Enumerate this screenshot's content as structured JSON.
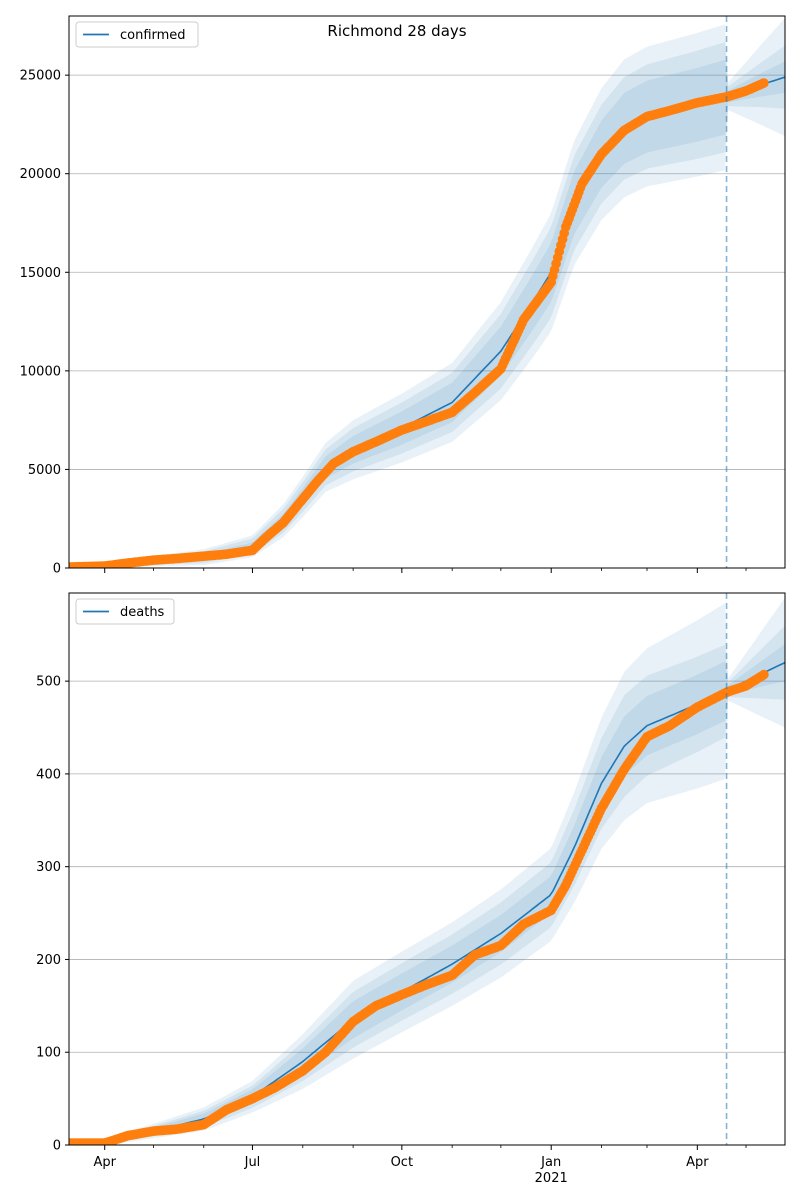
{
  "figure": {
    "title": "Richmond 28 days"
  },
  "colors": {
    "model": "#1f77b4",
    "observed": "#ff7f0e",
    "band": "#1f77b4",
    "grid": "#b0b0b0",
    "forecast_line": "#1f77b4"
  },
  "x_axis": {
    "start": "2020-03-10",
    "end": "2021-05-25",
    "major_ticks": [
      {
        "date": "2020-04-01",
        "label": "Apr"
      },
      {
        "date": "2020-07-01",
        "label": "Jul"
      },
      {
        "date": "2020-10-01",
        "label": "Oct"
      },
      {
        "date": "2021-01-01",
        "label": "Jan",
        "sublabel": "2021"
      },
      {
        "date": "2021-04-01",
        "label": "Apr"
      }
    ],
    "minor_ticks": [
      "2020-05-01",
      "2020-06-01",
      "2020-08-01",
      "2020-09-01",
      "2020-11-01",
      "2020-12-01",
      "2021-02-01",
      "2021-03-01",
      "2021-05-01"
    ]
  },
  "forecast_date": "2021-04-19",
  "chart_data": [
    {
      "type": "line",
      "legend": "confirmed",
      "legend_position": "upper left",
      "grid": "y",
      "ylim": [
        0,
        28000
      ],
      "yticks": [
        0,
        5000,
        10000,
        15000,
        20000,
        25000
      ],
      "model": [
        [
          "2020-03-10",
          0
        ],
        [
          "2020-04-01",
          60
        ],
        [
          "2020-05-01",
          350
        ],
        [
          "2020-06-01",
          550
        ],
        [
          "2020-07-01",
          1100
        ],
        [
          "2020-07-20",
          2400
        ],
        [
          "2020-08-01",
          3600
        ],
        [
          "2020-08-15",
          5100
        ],
        [
          "2020-09-01",
          6000
        ],
        [
          "2020-10-01",
          7100
        ],
        [
          "2020-11-01",
          8400
        ],
        [
          "2020-12-01",
          11000
        ],
        [
          "2020-12-20",
          13400
        ],
        [
          "2021-01-01",
          15000
        ],
        [
          "2021-01-15",
          18500
        ],
        [
          "2021-02-01",
          21000
        ],
        [
          "2021-02-15",
          22300
        ],
        [
          "2021-03-01",
          22900
        ],
        [
          "2021-04-01",
          23500
        ],
        [
          "2021-04-19",
          23900
        ],
        [
          "2021-05-10",
          24500
        ],
        [
          "2021-05-25",
          24900
        ]
      ],
      "band_widths": [
        [
          [
            "2020-03-10",
            0
          ],
          [
            "2020-07-01",
            200
          ],
          [
            "2020-09-01",
            700
          ],
          [
            "2020-11-01",
            1000
          ],
          [
            "2021-01-01",
            1500
          ],
          [
            "2021-02-15",
            1800
          ],
          [
            "2021-04-19",
            1900
          ],
          [
            "2021-04-20",
            300
          ],
          [
            "2021-05-25",
            800
          ]
        ],
        [
          [
            "2020-03-10",
            0
          ],
          [
            "2020-07-01",
            400
          ],
          [
            "2020-09-01",
            1100
          ],
          [
            "2020-11-01",
            1500
          ],
          [
            "2021-01-01",
            2300
          ],
          [
            "2021-02-15",
            2600
          ],
          [
            "2021-04-19",
            2800
          ],
          [
            "2021-04-20",
            500
          ],
          [
            "2021-05-25",
            1600
          ]
        ],
        [
          [
            "2020-03-10",
            0
          ],
          [
            "2020-07-01",
            550
          ],
          [
            "2020-09-01",
            1500
          ],
          [
            "2020-11-01",
            2000
          ],
          [
            "2021-01-01",
            3000
          ],
          [
            "2021-02-15",
            3500
          ],
          [
            "2021-04-19",
            3700
          ],
          [
            "2021-04-20",
            700
          ],
          [
            "2021-05-25",
            3000
          ]
        ]
      ],
      "observed": [
        [
          "2020-03-10",
          50
        ],
        [
          "2020-04-01",
          100
        ],
        [
          "2020-04-15",
          250
        ],
        [
          "2020-05-01",
          400
        ],
        [
          "2020-05-15",
          480
        ],
        [
          "2020-06-01",
          600
        ],
        [
          "2020-06-15",
          700
        ],
        [
          "2020-07-01",
          900
        ],
        [
          "2020-07-10",
          1600
        ],
        [
          "2020-07-20",
          2300
        ],
        [
          "2020-08-01",
          3500
        ],
        [
          "2020-08-10",
          4400
        ],
        [
          "2020-08-20",
          5300
        ],
        [
          "2020-09-01",
          5900
        ],
        [
          "2020-09-15",
          6400
        ],
        [
          "2020-10-01",
          7000
        ],
        [
          "2020-10-15",
          7400
        ],
        [
          "2020-11-01",
          7900
        ],
        [
          "2020-11-15",
          8900
        ],
        [
          "2020-12-01",
          10100
        ],
        [
          "2020-12-15",
          12600
        ],
        [
          "2021-01-01",
          14500
        ],
        [
          "2021-01-10",
          17300
        ],
        [
          "2021-01-20",
          19500
        ],
        [
          "2021-02-01",
          21000
        ],
        [
          "2021-02-15",
          22200
        ],
        [
          "2021-03-01",
          22900
        ],
        [
          "2021-03-15",
          23200
        ],
        [
          "2021-04-01",
          23600
        ],
        [
          "2021-04-19",
          23900
        ],
        [
          "2021-05-01",
          24200
        ],
        [
          "2021-05-12",
          24600
        ]
      ]
    },
    {
      "type": "line",
      "legend": "deaths",
      "legend_position": "upper left",
      "grid": "y",
      "ylim": [
        0,
        595
      ],
      "yticks": [
        0,
        100,
        200,
        300,
        400,
        500
      ],
      "model": [
        [
          "2020-03-10",
          0
        ],
        [
          "2020-04-01",
          3
        ],
        [
          "2020-05-01",
          15
        ],
        [
          "2020-06-01",
          28
        ],
        [
          "2020-07-01",
          52
        ],
        [
          "2020-08-01",
          90
        ],
        [
          "2020-09-01",
          135
        ],
        [
          "2020-10-01",
          165
        ],
        [
          "2020-11-01",
          195
        ],
        [
          "2020-12-01",
          228
        ],
        [
          "2021-01-01",
          270
        ],
        [
          "2021-01-15",
          320
        ],
        [
          "2021-02-01",
          390
        ],
        [
          "2021-02-15",
          430
        ],
        [
          "2021-03-01",
          452
        ],
        [
          "2021-04-01",
          475
        ],
        [
          "2021-04-19",
          490
        ],
        [
          "2021-05-25",
          520
        ]
      ],
      "band_widths": [
        [
          [
            "2020-03-10",
            0
          ],
          [
            "2020-07-01",
            8
          ],
          [
            "2020-09-01",
            20
          ],
          [
            "2020-11-01",
            20
          ],
          [
            "2021-01-01",
            20
          ],
          [
            "2021-02-15",
            32
          ],
          [
            "2021-04-19",
            32
          ],
          [
            "2021-04-20",
            5
          ],
          [
            "2021-05-25",
            20
          ]
        ],
        [
          [
            "2020-03-10",
            0
          ],
          [
            "2020-07-01",
            12
          ],
          [
            "2020-09-01",
            30
          ],
          [
            "2020-11-01",
            32
          ],
          [
            "2021-01-01",
            35
          ],
          [
            "2021-02-15",
            55
          ],
          [
            "2021-04-19",
            50
          ],
          [
            "2021-04-20",
            8
          ],
          [
            "2021-05-25",
            40
          ]
        ],
        [
          [
            "2020-03-10",
            0
          ],
          [
            "2020-07-01",
            17
          ],
          [
            "2020-09-01",
            42
          ],
          [
            "2020-11-01",
            45
          ],
          [
            "2021-01-01",
            50
          ],
          [
            "2021-02-15",
            80
          ],
          [
            "2021-04-19",
            95
          ],
          [
            "2021-04-20",
            12
          ],
          [
            "2021-05-25",
            70
          ]
        ]
      ],
      "observed": [
        [
          "2020-03-10",
          2
        ],
        [
          "2020-04-01",
          2
        ],
        [
          "2020-04-15",
          10
        ],
        [
          "2020-05-01",
          15
        ],
        [
          "2020-05-15",
          17
        ],
        [
          "2020-06-01",
          22
        ],
        [
          "2020-06-15",
          38
        ],
        [
          "2020-07-01",
          50
        ],
        [
          "2020-07-15",
          62
        ],
        [
          "2020-08-01",
          80
        ],
        [
          "2020-08-15",
          100
        ],
        [
          "2020-09-01",
          133
        ],
        [
          "2020-09-15",
          150
        ],
        [
          "2020-10-01",
          162
        ],
        [
          "2020-10-15",
          172
        ],
        [
          "2020-11-01",
          183
        ],
        [
          "2020-11-15",
          205
        ],
        [
          "2020-12-01",
          215
        ],
        [
          "2020-12-15",
          238
        ],
        [
          "2021-01-01",
          253
        ],
        [
          "2021-01-10",
          280
        ],
        [
          "2021-01-20",
          318
        ],
        [
          "2021-02-01",
          363
        ],
        [
          "2021-02-15",
          405
        ],
        [
          "2021-03-01",
          440
        ],
        [
          "2021-03-15",
          452
        ],
        [
          "2021-04-01",
          472
        ],
        [
          "2021-04-19",
          488
        ],
        [
          "2021-05-01",
          495
        ],
        [
          "2021-05-12",
          507
        ]
      ]
    }
  ]
}
